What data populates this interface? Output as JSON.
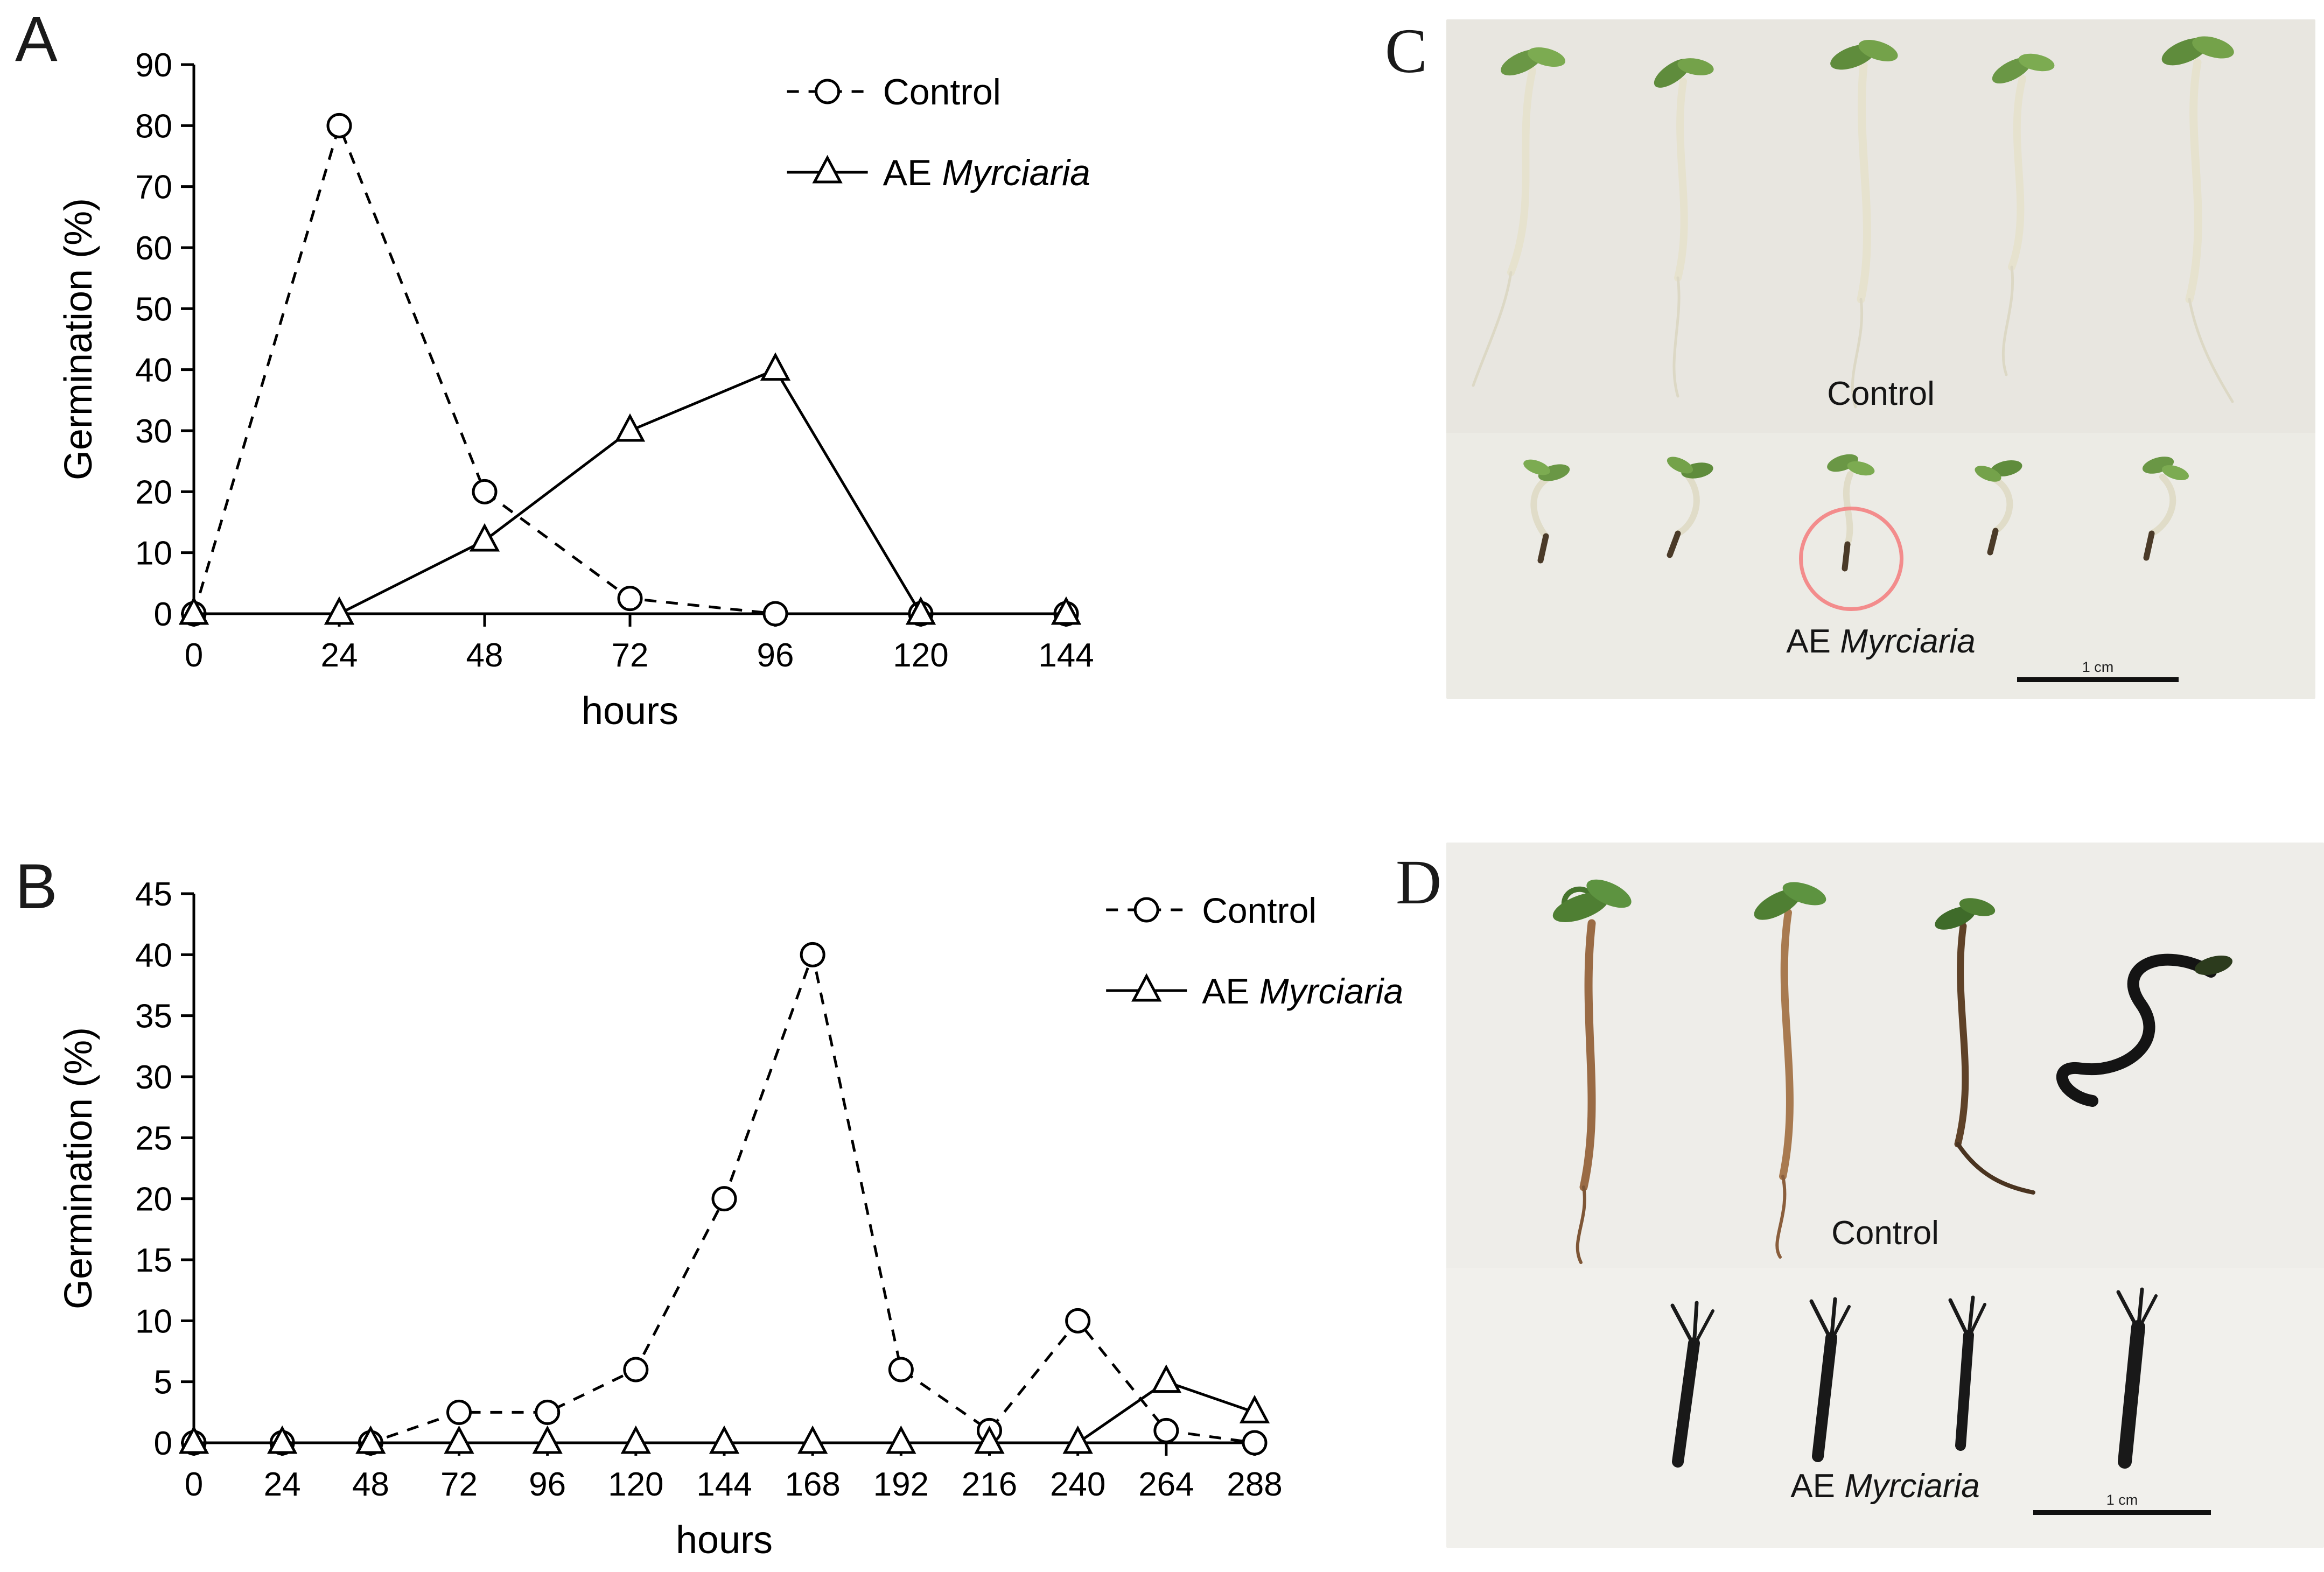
{
  "figure": {
    "background": "#ffffff"
  },
  "chart_panels": {
    "a": {
      "letter": "A"
    },
    "b": {
      "letter": "B"
    }
  },
  "photo_panels": {
    "c": {
      "letter": "C",
      "top_label": "Control",
      "bottom_label_prefix": "AE ",
      "bottom_label_species": "Myrciaria",
      "scale_label": "1 cm"
    },
    "d": {
      "letter": "D",
      "top_label": "Control",
      "bottom_label_prefix": "AE ",
      "bottom_label_species": "Myrciaria",
      "scale_label": "1 cm"
    }
  },
  "chart_data": [
    {
      "id": "A",
      "type": "line",
      "title": "",
      "xlabel": "hours",
      "ylabel": "Germination (%)",
      "x": [
        0,
        24,
        48,
        72,
        96,
        120,
        144
      ],
      "ylim": [
        0,
        90
      ],
      "ytick_step": 10,
      "grid": false,
      "legend_position": "top-right",
      "series": [
        {
          "name": "Control",
          "label_prefix": "Control",
          "label_italic": "",
          "marker": "circle",
          "line": "dashed",
          "values": [
            0,
            80,
            20,
            2.5,
            0,
            0,
            0
          ]
        },
        {
          "name": "AE Myrciaria",
          "label_prefix": "AE ",
          "label_italic": "Myrciaria",
          "marker": "triangle",
          "line": "solid",
          "values": [
            0,
            0,
            12,
            30,
            40,
            0,
            0
          ]
        }
      ]
    },
    {
      "id": "B",
      "type": "line",
      "title": "",
      "xlabel": "hours",
      "ylabel": "Germination (%)",
      "x": [
        0,
        24,
        48,
        72,
        96,
        120,
        144,
        168,
        192,
        216,
        240,
        264,
        288
      ],
      "ylim": [
        0,
        45
      ],
      "ytick_step": 5,
      "grid": false,
      "legend_position": "top-right",
      "series": [
        {
          "name": "Control",
          "label_prefix": "Control",
          "label_italic": "",
          "marker": "circle",
          "line": "dashed",
          "values": [
            0,
            0,
            0,
            2.5,
            2.5,
            6,
            20,
            40,
            6,
            1,
            10,
            1,
            0
          ]
        },
        {
          "name": "AE Myrciaria",
          "label_prefix": "AE ",
          "label_italic": "Myrciaria",
          "marker": "triangle",
          "line": "solid",
          "values": [
            0,
            0,
            0,
            0,
            0,
            0,
            0,
            0,
            0,
            0,
            0,
            5,
            2.5
          ]
        }
      ]
    }
  ]
}
